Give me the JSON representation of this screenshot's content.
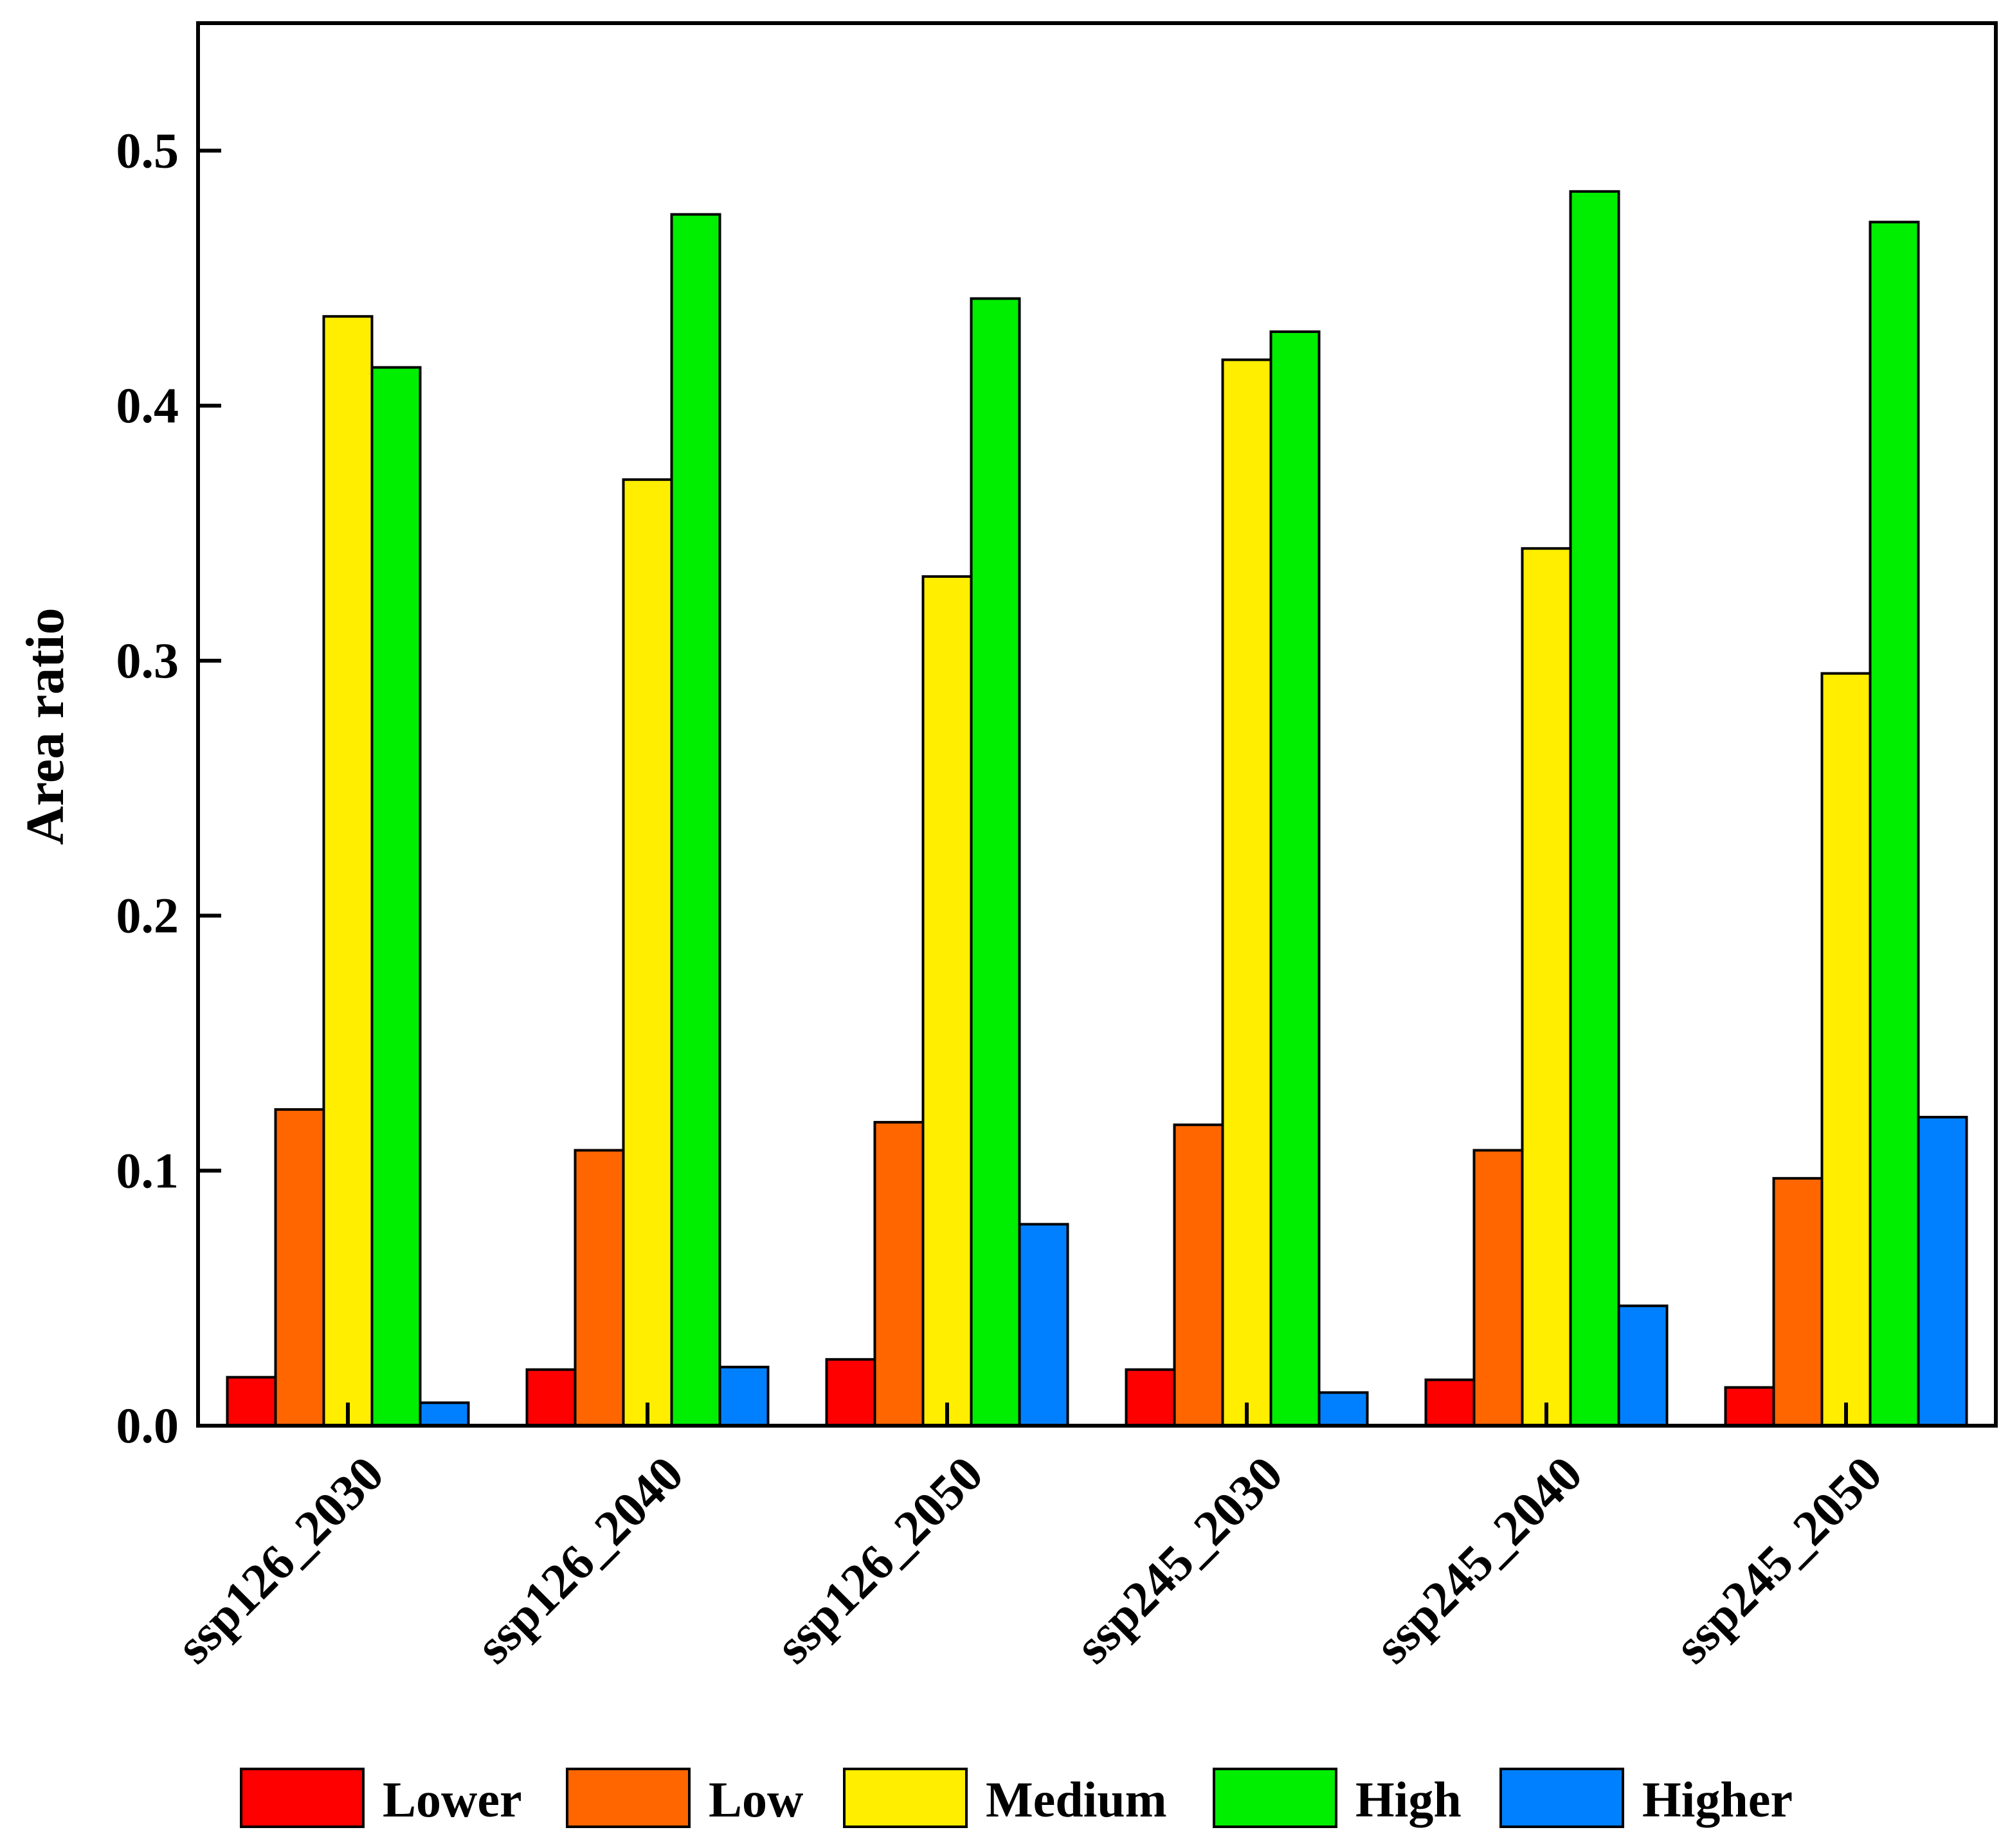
{
  "chart_data": {
    "type": "bar",
    "title": "",
    "xlabel": "",
    "ylabel": "Area ratio",
    "ylim": [
      0,
      0.55
    ],
    "yticks": [
      0.0,
      0.1,
      0.2,
      0.3,
      0.4,
      0.5
    ],
    "ytick_labels": [
      "0.0",
      "0.1",
      "0.2",
      "0.3",
      "0.4",
      "0.5"
    ],
    "grid": false,
    "legend_position": "bottom",
    "categories": [
      "ssp126_2030",
      "ssp126_2040",
      "ssp126_2050",
      "ssp245_2030",
      "ssp245_2040",
      "ssp245_2050"
    ],
    "series": [
      {
        "name": "Lower",
        "color": "#ff0000",
        "values": [
          0.019,
          0.022,
          0.026,
          0.022,
          0.018,
          0.015
        ]
      },
      {
        "name": "Low",
        "color": "#ff6600",
        "values": [
          0.124,
          0.108,
          0.119,
          0.118,
          0.108,
          0.097
        ]
      },
      {
        "name": "Medium",
        "color": "#ffee00",
        "values": [
          0.435,
          0.371,
          0.333,
          0.418,
          0.344,
          0.295
        ]
      },
      {
        "name": "High",
        "color": "#00ee00",
        "values": [
          0.415,
          0.475,
          0.442,
          0.429,
          0.484,
          0.472
        ]
      },
      {
        "name": "Higher",
        "color": "#0080ff",
        "values": [
          0.009,
          0.023,
          0.079,
          0.013,
          0.047,
          0.121
        ]
      }
    ]
  }
}
